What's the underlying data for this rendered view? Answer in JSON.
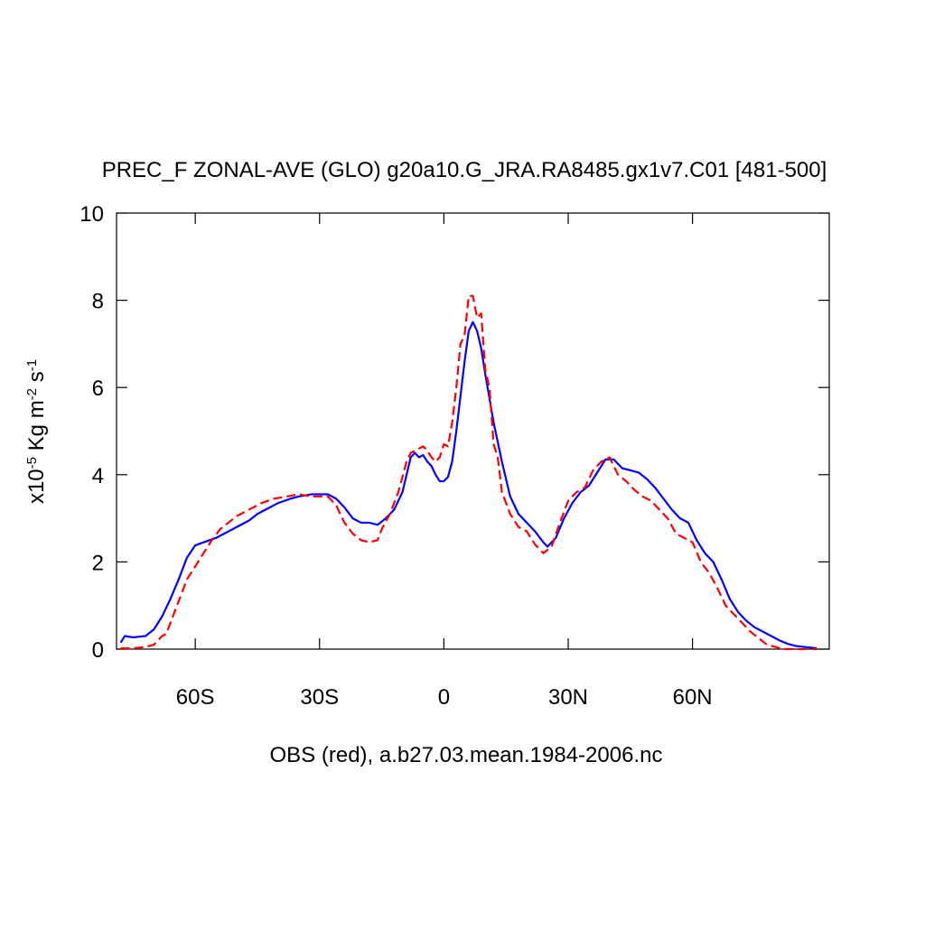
{
  "chart_data": {
    "type": "line",
    "title": "PREC_F ZONAL-AVE (GLO) g20a10.G_JRA.RA8485.gx1v7.C01 [481-500]",
    "x_label": "OBS (red), a.b27.03.mean.1984-2006.nc",
    "y_label": [
      "x10",
      "-5",
      " Kg m",
      "-2",
      " s",
      "-1"
    ],
    "xlim": [
      -79,
      93
    ],
    "ylim": [
      0,
      10
    ],
    "xticks": [
      {
        "value": -60,
        "label": "60S"
      },
      {
        "value": -30,
        "label": "30S"
      },
      0,
      {
        "value": 30,
        "label": "30N"
      },
      {
        "value": 60,
        "label": "60N"
      }
    ],
    "yticks": [
      0,
      2,
      4,
      6,
      8,
      10
    ],
    "series": [
      {
        "color": "#0000ff",
        "dash": false,
        "x": [
          -78,
          -77,
          -75,
          -72,
          -70,
          -68,
          -66,
          -64,
          -62,
          -60,
          -58,
          -55,
          -52,
          -50,
          -47,
          -45,
          -42,
          -40,
          -37,
          -35,
          -32,
          -30,
          -28,
          -26,
          -24,
          -22,
          -20,
          -18,
          -16,
          -14,
          -12,
          -10,
          -9,
          -8,
          -7,
          -6,
          -5,
          -4,
          -3,
          -2,
          -1,
          0,
          1,
          2,
          3,
          4,
          5,
          6,
          7,
          8,
          9,
          10,
          12,
          14,
          16,
          18,
          20,
          22,
          24,
          25,
          27,
          29,
          31,
          33,
          35,
          37,
          39,
          41,
          43,
          45,
          47,
          49,
          51,
          53,
          55,
          57,
          59,
          61,
          63,
          65,
          67,
          69,
          71,
          73,
          75,
          77,
          79,
          81,
          83,
          85,
          87,
          89,
          90
        ],
        "values": [
          0.15,
          0.3,
          0.27,
          0.3,
          0.45,
          0.75,
          1.15,
          1.6,
          2.1,
          2.38,
          2.45,
          2.55,
          2.7,
          2.8,
          2.95,
          3.1,
          3.25,
          3.35,
          3.45,
          3.5,
          3.55,
          3.55,
          3.55,
          3.45,
          3.25,
          3.0,
          2.9,
          2.9,
          2.85,
          3.0,
          3.2,
          3.6,
          4.0,
          4.4,
          4.5,
          4.4,
          4.45,
          4.3,
          4.2,
          4.0,
          3.85,
          3.85,
          3.95,
          4.3,
          5.0,
          5.8,
          6.6,
          7.3,
          7.5,
          7.3,
          6.9,
          6.3,
          5.2,
          4.3,
          3.5,
          3.1,
          2.9,
          2.7,
          2.45,
          2.35,
          2.55,
          3.0,
          3.35,
          3.6,
          3.75,
          4.05,
          4.35,
          4.35,
          4.15,
          4.1,
          4.05,
          3.9,
          3.7,
          3.45,
          3.2,
          3.0,
          2.9,
          2.5,
          2.2,
          2.0,
          1.6,
          1.15,
          0.85,
          0.65,
          0.5,
          0.4,
          0.3,
          0.2,
          0.12,
          0.07,
          0.05,
          0.03,
          0.02
        ]
      },
      {
        "color": "#ff0000",
        "dash": true,
        "x": [
          -78,
          -75,
          -72,
          -70,
          -68,
          -67,
          -66,
          -64,
          -62,
          -60,
          -58,
          -56,
          -54,
          -52,
          -50,
          -47,
          -44,
          -41,
          -38,
          -35,
          -32,
          -30,
          -28,
          -26,
          -24,
          -22,
          -20,
          -18,
          -16,
          -15,
          -13,
          -11,
          -9,
          -8,
          -6,
          -5,
          -4,
          -3,
          -2,
          -1,
          0,
          1,
          2,
          3,
          4,
          5,
          6,
          7,
          8,
          9,
          10,
          11,
          12,
          13,
          14,
          16,
          18,
          20,
          22,
          24,
          26,
          28,
          30,
          32,
          34,
          36,
          38,
          40,
          42,
          44,
          46,
          48,
          50,
          52,
          54,
          56,
          58,
          60,
          62,
          64,
          66,
          68,
          70,
          72,
          74,
          76,
          78,
          80,
          82,
          84,
          86,
          88,
          90
        ],
        "values": [
          0.02,
          0.02,
          0.05,
          0.1,
          0.3,
          0.35,
          0.6,
          1.1,
          1.6,
          1.9,
          2.2,
          2.5,
          2.75,
          2.9,
          3.05,
          3.2,
          3.35,
          3.45,
          3.5,
          3.55,
          3.5,
          3.5,
          3.5,
          3.3,
          2.9,
          2.65,
          2.5,
          2.45,
          2.5,
          2.75,
          3.1,
          3.6,
          4.3,
          4.5,
          4.6,
          4.65,
          4.55,
          4.4,
          4.3,
          4.4,
          4.7,
          4.65,
          5.2,
          6.0,
          7.0,
          7.2,
          8.1,
          8.1,
          7.6,
          7.7,
          6.4,
          6.0,
          4.7,
          4.4,
          3.6,
          3.1,
          2.8,
          2.7,
          2.4,
          2.2,
          2.35,
          2.9,
          3.4,
          3.6,
          3.7,
          4.1,
          4.3,
          4.4,
          4.0,
          3.85,
          3.65,
          3.5,
          3.4,
          3.2,
          3.0,
          2.65,
          2.55,
          2.45,
          2.0,
          1.75,
          1.4,
          1.0,
          0.8,
          0.6,
          0.4,
          0.25,
          0.1,
          0.05,
          0,
          0,
          0,
          0,
          0
        ]
      }
    ]
  }
}
